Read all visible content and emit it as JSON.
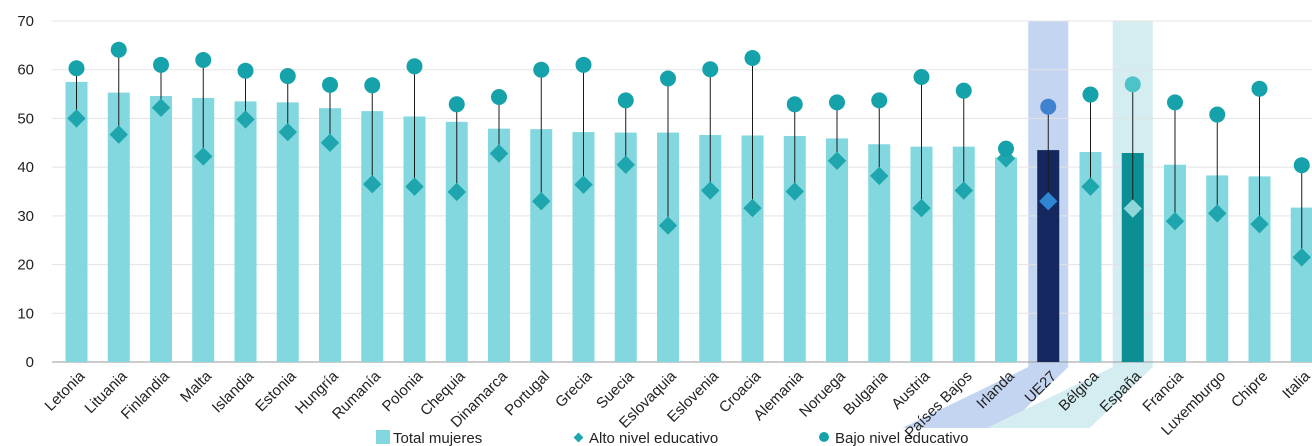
{
  "chart_data": {
    "type": "bar",
    "ylim": [
      0,
      70
    ],
    "yticks": [
      0,
      10,
      20,
      30,
      40,
      50,
      60,
      70
    ],
    "grid": true,
    "legend_position": "bottom",
    "highlight": [
      "UE27",
      "España"
    ],
    "categories": [
      "Letonia",
      "Lituania",
      "Finlandia",
      "Malta",
      "Islandia",
      "Estonia",
      "Hungría",
      "Rumanía",
      "Polonia",
      "Chequia",
      "Dinamarca",
      "Portugal",
      "Grecia",
      "Suecia",
      "Eslovaquia",
      "Eslovenia",
      "Croacia",
      "Alemania",
      "Noruega",
      "Bulgaria",
      "Austria",
      "Países Bajos",
      "Irlanda",
      "UE27",
      "Bélgica",
      "España",
      "Francia",
      "Luxemburgo",
      "Chipre",
      "Italia"
    ],
    "series": [
      {
        "name": "Total mujeres",
        "kind": "bar",
        "color": "#82D8DE",
        "values": [
          57.5,
          55.3,
          54.6,
          54.2,
          53.5,
          53.3,
          52.1,
          51.5,
          50.4,
          49.3,
          47.9,
          47.8,
          47.2,
          47.1,
          47.1,
          46.6,
          46.5,
          46.4,
          45.9,
          44.7,
          44.2,
          44.2,
          42.0,
          43.5,
          43.1,
          42.9,
          40.5,
          38.3,
          38.1,
          31.7
        ]
      },
      {
        "name": "Alto nivel educativo",
        "kind": "diamond",
        "color": "#1FA5AD",
        "values": [
          50.0,
          46.7,
          52.2,
          42.2,
          49.8,
          47.2,
          45.0,
          36.5,
          36.0,
          34.9,
          42.8,
          33.0,
          36.4,
          40.5,
          28.0,
          35.2,
          31.6,
          35.0,
          41.3,
          38.2,
          31.6,
          35.2,
          41.8,
          33.0,
          36.0,
          31.5,
          28.9,
          30.5,
          28.3,
          21.5
        ]
      },
      {
        "name": "Bajo nivel educativo",
        "kind": "dot",
        "color": "#16A2AA",
        "values": [
          60.3,
          64.1,
          61.0,
          62.0,
          59.8,
          58.7,
          56.9,
          56.8,
          60.7,
          52.9,
          54.4,
          60.0,
          61.0,
          53.7,
          58.2,
          60.1,
          62.4,
          52.9,
          53.3,
          53.7,
          58.5,
          55.7,
          43.8,
          52.4,
          54.9,
          57.0,
          53.3,
          50.8,
          56.1,
          40.4
        ]
      }
    ],
    "highlight_colors": {
      "UE27": {
        "bar": "#14275F",
        "band": "#C4D5F2",
        "dot": "#3F83CF",
        "diamond": "#2E86D3"
      },
      "España": {
        "bar": "#0B8F95",
        "band": "#D3EDF1",
        "dot": "#4DC2C8",
        "diamond": "#8FD6DA"
      }
    }
  }
}
